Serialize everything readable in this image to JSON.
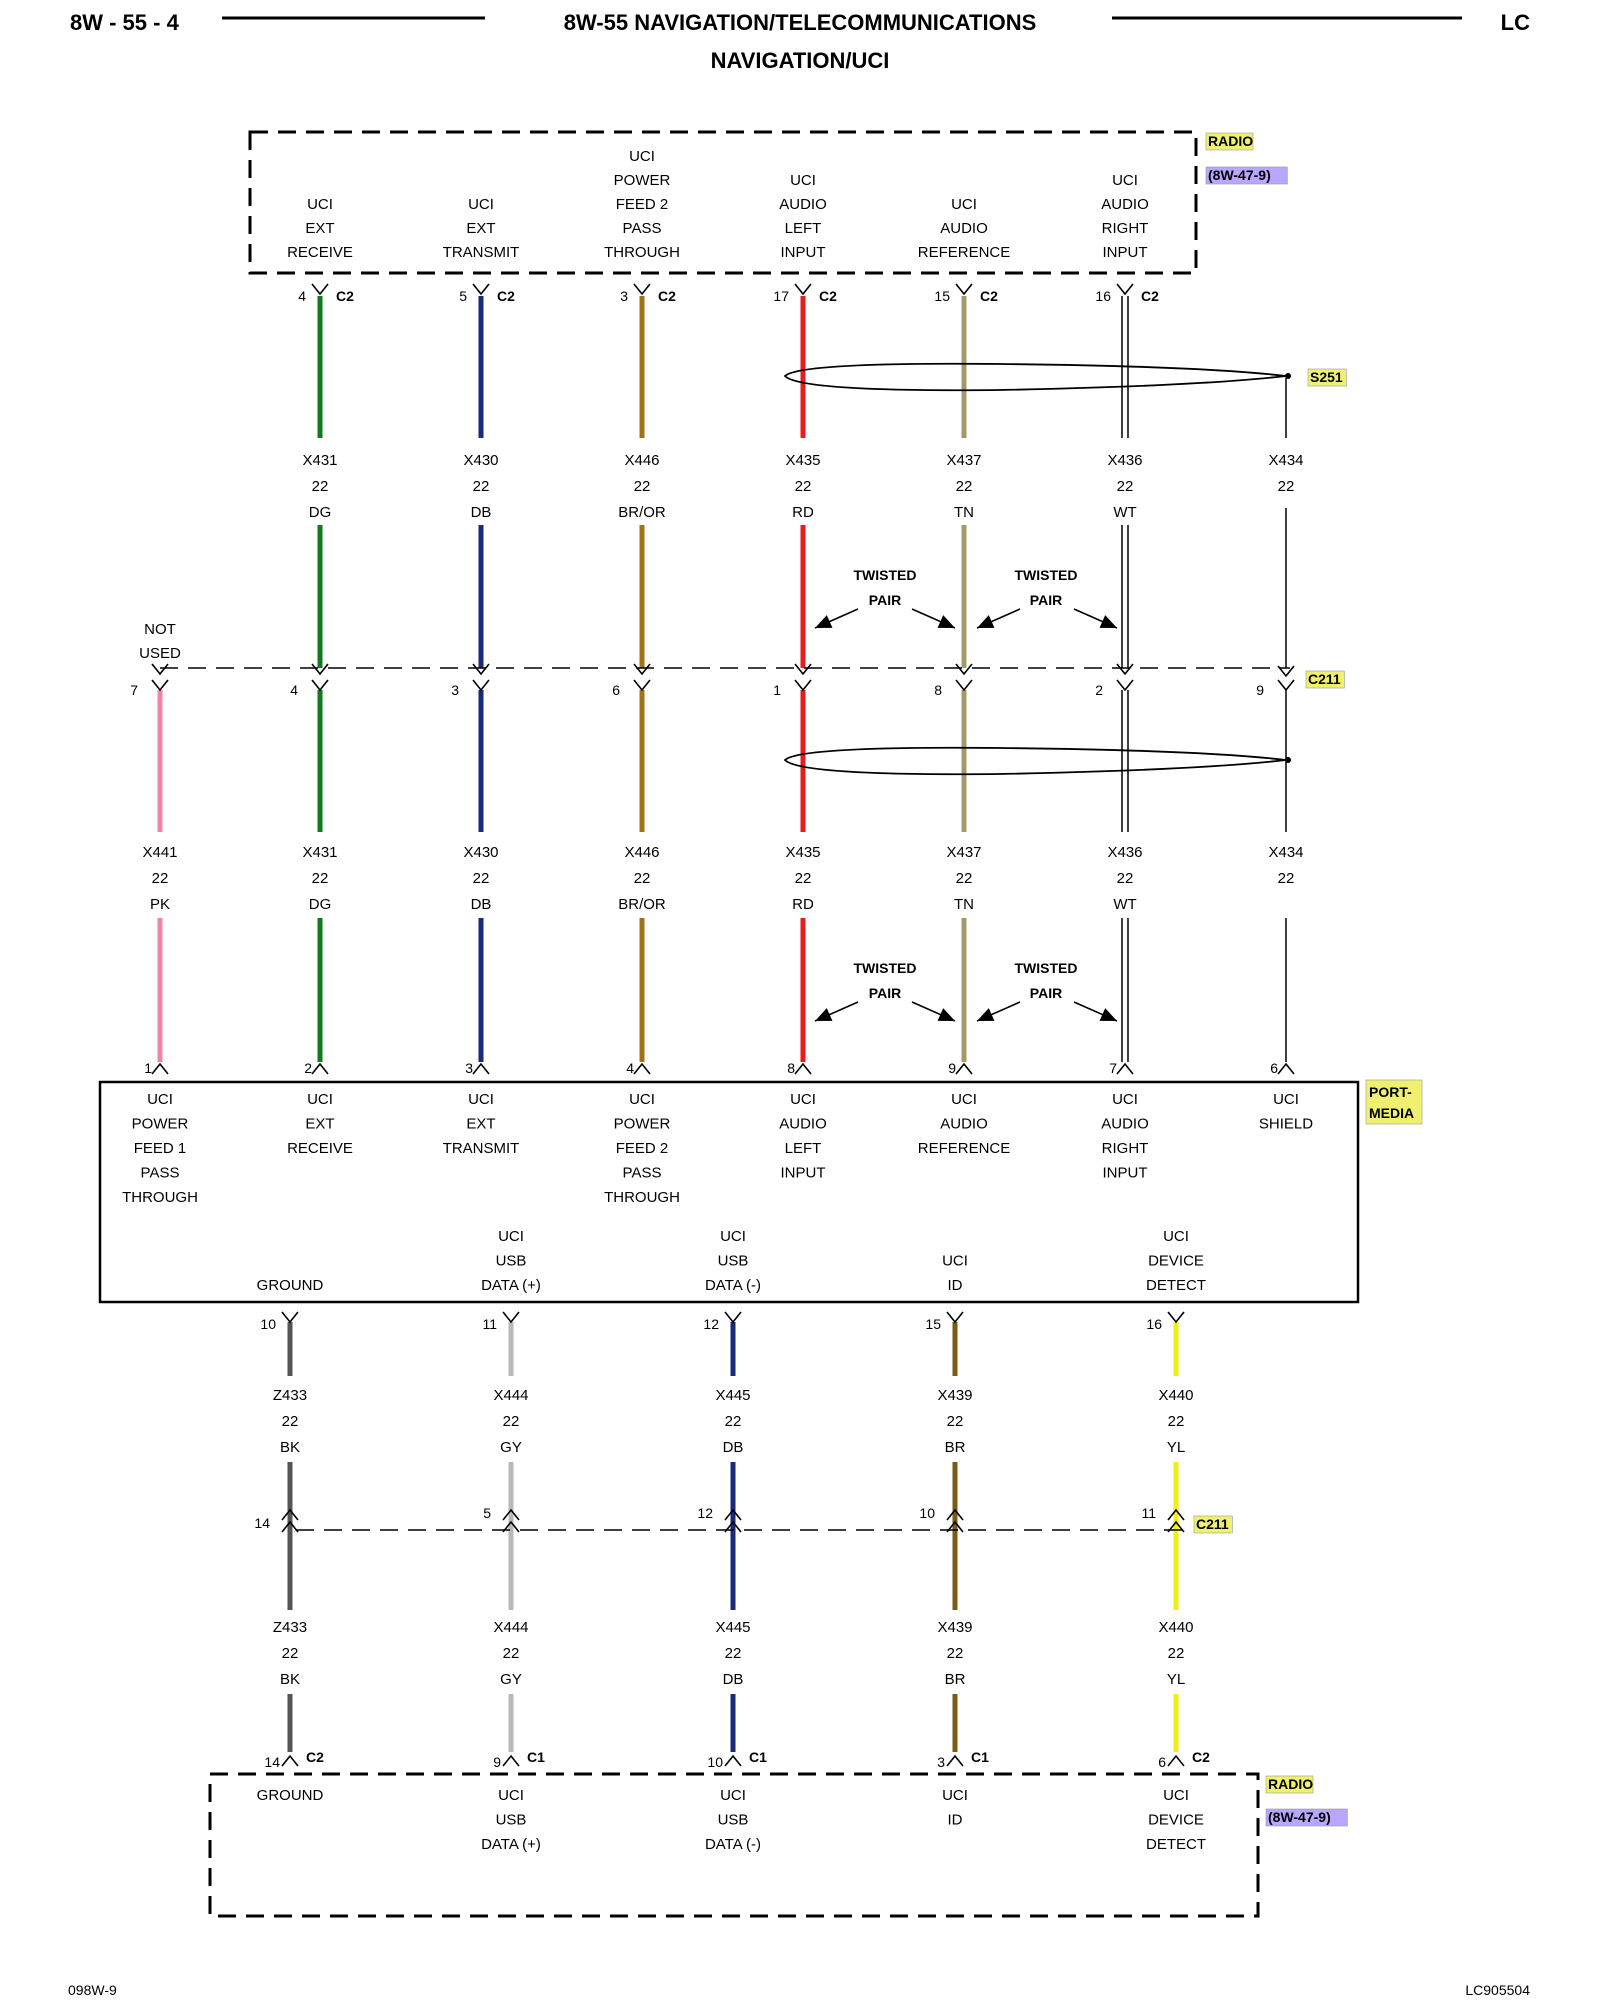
{
  "header": {
    "page_left": "8W - 55 - 4",
    "title": "8W-55 NAVIGATION/TELECOMMUNICATIONS",
    "subtitle": "NAVIGATION/UCI",
    "page_right": "LC"
  },
  "footer": {
    "left": "098W-9",
    "right": "LC905504"
  },
  "colors": {
    "DG": "#117a1c",
    "DB": "#1a2a7a",
    "BR/OR": "#a07318",
    "RD": "#e51d1d",
    "TN": "#a39a6a",
    "WT": "#ffffff",
    "PK": "#ef86a8",
    "BK": "#555555",
    "GY": "#b8b8b8",
    "BR": "#7a5b16",
    "YL": "#f2ee14",
    "tag_bg": "#f0f070",
    "ref_bg": "#b9a6ff",
    "twisted": "#000000"
  },
  "radio_top": {
    "name": "RADIO",
    "ref": "(8W-47-9)",
    "pins": [
      {
        "label": [
          "UCI",
          "EXT",
          "RECEIVE"
        ],
        "pin": "4",
        "conn": "C2"
      },
      {
        "label": [
          "UCI",
          "EXT",
          "TRANSMIT"
        ],
        "pin": "5",
        "conn": "C2"
      },
      {
        "label": [
          "UCI",
          "POWER",
          "FEED 2",
          "PASS",
          "THROUGH"
        ],
        "pin": "3",
        "conn": "C2"
      },
      {
        "label": [
          "UCI",
          "AUDIO",
          "LEFT",
          "INPUT"
        ],
        "pin": "17",
        "conn": "C2"
      },
      {
        "label": [
          "UCI",
          "AUDIO",
          "REFERENCE"
        ],
        "pin": "15",
        "conn": "C2"
      },
      {
        "label": [
          "UCI",
          "AUDIO",
          "RIGHT",
          "INPUT"
        ],
        "pin": "16",
        "conn": "C2"
      }
    ]
  },
  "splice": "S251",
  "shield_wire": {
    "circuit": "X434",
    "gauge": "22"
  },
  "upper_wires": [
    {
      "circuit": "X431",
      "gauge": "22",
      "color": "DG"
    },
    {
      "circuit": "X430",
      "gauge": "22",
      "color": "DB"
    },
    {
      "circuit": "X446",
      "gauge": "22",
      "color": "BR/OR"
    },
    {
      "circuit": "X435",
      "gauge": "22",
      "color": "RD"
    },
    {
      "circuit": "X437",
      "gauge": "22",
      "color": "TN"
    },
    {
      "circuit": "X436",
      "gauge": "22",
      "color": "WT"
    }
  ],
  "twisted_label": [
    "TWISTED",
    "PAIR"
  ],
  "c211_top": {
    "name": "C211",
    "not_used": [
      "NOT",
      "USED"
    ],
    "pins": [
      "7",
      "4",
      "3",
      "6",
      "1",
      "8",
      "2",
      "9"
    ]
  },
  "lower_wires": [
    {
      "circuit": "X441",
      "gauge": "22",
      "color": "PK"
    },
    {
      "circuit": "X431",
      "gauge": "22",
      "color": "DG"
    },
    {
      "circuit": "X430",
      "gauge": "22",
      "color": "DB"
    },
    {
      "circuit": "X446",
      "gauge": "22",
      "color": "BR/OR"
    },
    {
      "circuit": "X435",
      "gauge": "22",
      "color": "RD"
    },
    {
      "circuit": "X437",
      "gauge": "22",
      "color": "TN"
    },
    {
      "circuit": "X436",
      "gauge": "22",
      "color": "WT"
    },
    {
      "circuit": "X434",
      "gauge": "22",
      "color": ""
    }
  ],
  "port_media": {
    "name": [
      "PORT-",
      "MEDIA"
    ],
    "top_pins": [
      {
        "pin": "1",
        "label": [
          "UCI",
          "POWER",
          "FEED 1",
          "PASS",
          "THROUGH"
        ]
      },
      {
        "pin": "2",
        "label": [
          "UCI",
          "EXT",
          "RECEIVE"
        ]
      },
      {
        "pin": "3",
        "label": [
          "UCI",
          "EXT",
          "TRANSMIT"
        ]
      },
      {
        "pin": "4",
        "label": [
          "UCI",
          "POWER",
          "FEED 2",
          "PASS",
          "THROUGH"
        ]
      },
      {
        "pin": "8",
        "label": [
          "UCI",
          "AUDIO",
          "LEFT",
          "INPUT"
        ]
      },
      {
        "pin": "9",
        "label": [
          "UCI",
          "AUDIO",
          "REFERENCE"
        ]
      },
      {
        "pin": "7",
        "label": [
          "UCI",
          "AUDIO",
          "RIGHT",
          "INPUT"
        ]
      },
      {
        "pin": "6",
        "label": [
          "UCI",
          "SHIELD"
        ]
      }
    ],
    "bottom_pins": [
      {
        "pin": "10",
        "label": [
          "GROUND"
        ]
      },
      {
        "pin": "11",
        "label": [
          "UCI",
          "USB",
          "DATA (+)"
        ]
      },
      {
        "pin": "12",
        "label": [
          "UCI",
          "USB",
          "DATA (-)"
        ]
      },
      {
        "pin": "15",
        "label": [
          "UCI",
          "ID"
        ]
      },
      {
        "pin": "16",
        "label": [
          "UCI",
          "DEVICE",
          "DETECT"
        ]
      }
    ]
  },
  "bottom_wires": [
    {
      "circuit": "Z433",
      "gauge": "22",
      "color": "BK"
    },
    {
      "circuit": "X444",
      "gauge": "22",
      "color": "GY"
    },
    {
      "circuit": "X445",
      "gauge": "22",
      "color": "DB"
    },
    {
      "circuit": "X439",
      "gauge": "22",
      "color": "BR"
    },
    {
      "circuit": "X440",
      "gauge": "22",
      "color": "YL"
    }
  ],
  "c211_bottom": {
    "name": "C211",
    "pins": [
      "14",
      "5",
      "12",
      "10",
      "11"
    ]
  },
  "radio_bottom": {
    "name": "RADIO",
    "ref": "(8W-47-9)",
    "pins": [
      {
        "pin": "14",
        "conn": "C2",
        "label": [
          "GROUND"
        ]
      },
      {
        "pin": "9",
        "conn": "C1",
        "label": [
          "UCI",
          "USB",
          "DATA (+)"
        ]
      },
      {
        "pin": "10",
        "conn": "C1",
        "label": [
          "UCI",
          "USB",
          "DATA (-)"
        ]
      },
      {
        "pin": "3",
        "conn": "C1",
        "label": [
          "UCI",
          "ID"
        ]
      },
      {
        "pin": "6",
        "conn": "C2",
        "label": [
          "UCI",
          "DEVICE",
          "DETECT"
        ]
      }
    ]
  }
}
